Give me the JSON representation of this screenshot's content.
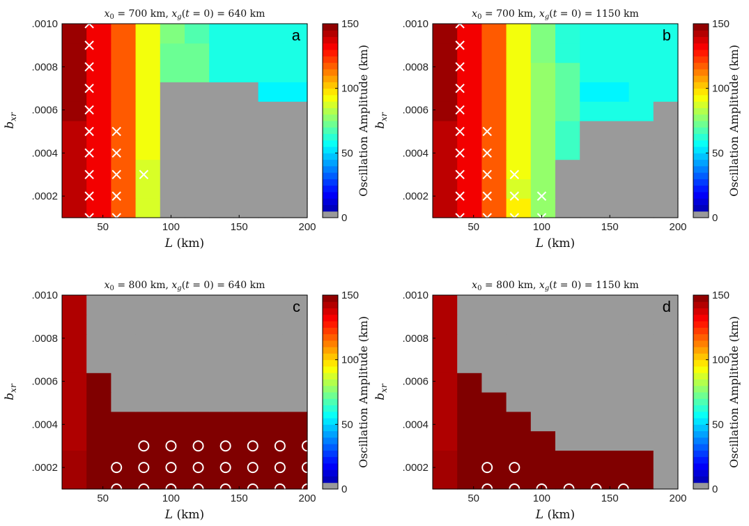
{
  "colorbar": {
    "label": "Oscillation Amplitude (km)",
    "ticks": [
      0,
      50,
      100,
      150
    ],
    "range": [
      0,
      150
    ]
  },
  "marker_legend": {
    "cross": "×",
    "circle": "○"
  },
  "chart_data": [
    {
      "type": "heatmap",
      "panel_label": "a",
      "title": {
        "x0": "700",
        "xg": "640",
        "unit": "km"
      },
      "xlabel": "L",
      "xlabel_unit": "(km)",
      "ylabel_base": "b",
      "ylabel_sub": "xr",
      "x": [
        20,
        40,
        60,
        80,
        100,
        120,
        140,
        160,
        180,
        200
      ],
      "y": [
        0.0001,
        0.0002,
        0.0003,
        0.0004,
        0.0005,
        0.0006,
        0.0007,
        0.0008,
        0.0009,
        0.001
      ],
      "xticks": [
        50,
        100,
        150,
        200
      ],
      "xtick_labels": [
        "50",
        "100",
        "150",
        "200"
      ],
      "yticks": [
        0.0002,
        0.0004,
        0.0006,
        0.0008,
        0.001
      ],
      "ytick_labels": [
        ".0002",
        ".0004",
        ".0006",
        ".0008",
        ".0010"
      ],
      "xlim": [
        20,
        200
      ],
      "ylim": [
        0.0001,
        0.001
      ],
      "values": [
        [
          141,
          133,
          118,
          88,
          null,
          null,
          null,
          null,
          null,
          null
        ],
        [
          141,
          133,
          118,
          88,
          null,
          null,
          null,
          null,
          null,
          null
        ],
        [
          141,
          133,
          118,
          88,
          null,
          null,
          null,
          null,
          null,
          null
        ],
        [
          141,
          133,
          118,
          92,
          null,
          null,
          null,
          null,
          null,
          null
        ],
        [
          141,
          133,
          118,
          92,
          null,
          null,
          null,
          null,
          null,
          null
        ],
        [
          146,
          133,
          118,
          92,
          null,
          null,
          null,
          null,
          null,
          null
        ],
        [
          146,
          133,
          118,
          92,
          null,
          null,
          null,
          null,
          55,
          55
        ],
        [
          146,
          133,
          118,
          92,
          72,
          72,
          60,
          60,
          60,
          60
        ],
        [
          146,
          133,
          118,
          92,
          72,
          72,
          60,
          60,
          60,
          60
        ],
        [
          146,
          133,
          118,
          92,
          75,
          68,
          60,
          60,
          60,
          60
        ]
      ],
      "markers": [
        {
          "x": 40,
          "y": 0.0001,
          "m": "cross"
        },
        {
          "x": 40,
          "y": 0.0002,
          "m": "cross"
        },
        {
          "x": 40,
          "y": 0.0003,
          "m": "cross"
        },
        {
          "x": 40,
          "y": 0.0004,
          "m": "cross"
        },
        {
          "x": 40,
          "y": 0.0005,
          "m": "cross"
        },
        {
          "x": 40,
          "y": 0.0006,
          "m": "cross"
        },
        {
          "x": 40,
          "y": 0.0007,
          "m": "cross"
        },
        {
          "x": 40,
          "y": 0.0008,
          "m": "cross"
        },
        {
          "x": 40,
          "y": 0.0009,
          "m": "cross"
        },
        {
          "x": 40,
          "y": 0.001,
          "m": "cross"
        },
        {
          "x": 60,
          "y": 0.0001,
          "m": "cross"
        },
        {
          "x": 60,
          "y": 0.0002,
          "m": "cross"
        },
        {
          "x": 60,
          "y": 0.0003,
          "m": "cross"
        },
        {
          "x": 60,
          "y": 0.0004,
          "m": "cross"
        },
        {
          "x": 60,
          "y": 0.0005,
          "m": "cross"
        },
        {
          "x": 80,
          "y": 0.0003,
          "m": "cross"
        }
      ]
    },
    {
      "type": "heatmap",
      "panel_label": "b",
      "title": {
        "x0": "700",
        "xg": "1150",
        "unit": "km"
      },
      "xlabel": "L",
      "xlabel_unit": "(km)",
      "ylabel_base": "b",
      "ylabel_sub": "xr",
      "x": [
        20,
        40,
        60,
        80,
        100,
        120,
        140,
        160,
        180,
        200
      ],
      "y": [
        0.0001,
        0.0002,
        0.0003,
        0.0004,
        0.0005,
        0.0006,
        0.0007,
        0.0008,
        0.0009,
        0.001
      ],
      "xticks": [
        50,
        100,
        150,
        200
      ],
      "xtick_labels": [
        "50",
        "100",
        "150",
        "200"
      ],
      "yticks": [
        0.0002,
        0.0004,
        0.0006,
        0.0008,
        0.001
      ],
      "ytick_labels": [
        ".0002",
        ".0004",
        ".0006",
        ".0008",
        ".0010"
      ],
      "xlim": [
        20,
        200
      ],
      "ylim": [
        0.0001,
        0.001
      ],
      "values": [
        [
          141,
          133,
          118,
          96,
          78,
          null,
          null,
          null,
          null,
          null
        ],
        [
          141,
          133,
          118,
          88,
          78,
          null,
          null,
          null,
          null,
          null
        ],
        [
          141,
          133,
          118,
          92,
          78,
          null,
          null,
          null,
          null,
          null
        ],
        [
          141,
          133,
          118,
          92,
          78,
          65,
          null,
          null,
          null,
          null
        ],
        [
          141,
          133,
          118,
          92,
          78,
          65,
          null,
          null,
          null,
          null
        ],
        [
          146,
          133,
          118,
          92,
          78,
          70,
          60,
          60,
          60,
          null
        ],
        [
          146,
          133,
          118,
          92,
          78,
          70,
          55,
          55,
          60,
          60
        ],
        [
          146,
          133,
          118,
          92,
          78,
          70,
          60,
          60,
          60,
          60
        ],
        [
          146,
          133,
          118,
          92,
          75,
          62,
          60,
          60,
          60,
          60
        ],
        [
          146,
          133,
          118,
          92,
          75,
          62,
          60,
          60,
          60,
          60
        ]
      ],
      "markers": [
        {
          "x": 40,
          "y": 0.0001,
          "m": "cross"
        },
        {
          "x": 40,
          "y": 0.0002,
          "m": "cross"
        },
        {
          "x": 40,
          "y": 0.0003,
          "m": "cross"
        },
        {
          "x": 40,
          "y": 0.0004,
          "m": "cross"
        },
        {
          "x": 40,
          "y": 0.0005,
          "m": "cross"
        },
        {
          "x": 40,
          "y": 0.0006,
          "m": "cross"
        },
        {
          "x": 40,
          "y": 0.0007,
          "m": "cross"
        },
        {
          "x": 40,
          "y": 0.0008,
          "m": "cross"
        },
        {
          "x": 40,
          "y": 0.0009,
          "m": "cross"
        },
        {
          "x": 40,
          "y": 0.001,
          "m": "cross"
        },
        {
          "x": 60,
          "y": 0.0001,
          "m": "cross"
        },
        {
          "x": 60,
          "y": 0.0002,
          "m": "cross"
        },
        {
          "x": 60,
          "y": 0.0003,
          "m": "cross"
        },
        {
          "x": 60,
          "y": 0.0004,
          "m": "cross"
        },
        {
          "x": 60,
          "y": 0.0005,
          "m": "cross"
        },
        {
          "x": 80,
          "y": 0.0001,
          "m": "cross"
        },
        {
          "x": 80,
          "y": 0.0002,
          "m": "cross"
        },
        {
          "x": 80,
          "y": 0.0003,
          "m": "cross"
        },
        {
          "x": 100,
          "y": 0.0001,
          "m": "cross"
        },
        {
          "x": 100,
          "y": 0.0002,
          "m": "cross"
        }
      ]
    },
    {
      "type": "heatmap",
      "panel_label": "c",
      "title": {
        "x0": "800",
        "xg": "640",
        "unit": "km"
      },
      "xlabel": "L",
      "xlabel_unit": "(km)",
      "ylabel_base": "b",
      "ylabel_sub": "xr",
      "x": [
        20,
        40,
        60,
        80,
        100,
        120,
        140,
        160,
        180,
        200
      ],
      "y": [
        0.0001,
        0.0002,
        0.0003,
        0.0004,
        0.0005,
        0.0006,
        0.0007,
        0.0008,
        0.0009,
        0.001
      ],
      "xticks": [
        50,
        100,
        150,
        200
      ],
      "xtick_labels": [
        "50",
        "100",
        "150",
        "200"
      ],
      "yticks": [
        0.0002,
        0.0004,
        0.0006,
        0.0008,
        0.001
      ],
      "ytick_labels": [
        ".0002",
        ".0004",
        ".0006",
        ".0008",
        ".0010"
      ],
      "xlim": [
        20,
        200
      ],
      "ylim": [
        0.0001,
        0.001
      ],
      "values": [
        [
          145,
          150,
          150,
          150,
          150,
          150,
          150,
          150,
          150,
          150
        ],
        [
          145,
          150,
          150,
          150,
          150,
          150,
          150,
          150,
          150,
          150
        ],
        [
          143,
          150,
          150,
          150,
          150,
          150,
          150,
          150,
          150,
          150
        ],
        [
          143,
          150,
          150,
          150,
          150,
          150,
          150,
          150,
          150,
          150
        ],
        [
          143,
          150,
          null,
          null,
          null,
          null,
          null,
          null,
          null,
          null
        ],
        [
          143,
          150,
          null,
          null,
          null,
          null,
          null,
          null,
          null,
          null
        ],
        [
          143,
          null,
          null,
          null,
          null,
          null,
          null,
          null,
          null,
          null
        ],
        [
          143,
          null,
          null,
          null,
          null,
          null,
          null,
          null,
          null,
          null
        ],
        [
          143,
          null,
          null,
          null,
          null,
          null,
          null,
          null,
          null,
          null
        ],
        [
          143,
          null,
          null,
          null,
          null,
          null,
          null,
          null,
          null,
          null
        ]
      ],
      "markers": [
        {
          "x": 60,
          "y": 0.0001,
          "m": "circle"
        },
        {
          "x": 80,
          "y": 0.0001,
          "m": "circle"
        },
        {
          "x": 100,
          "y": 0.0001,
          "m": "circle"
        },
        {
          "x": 120,
          "y": 0.0001,
          "m": "circle"
        },
        {
          "x": 140,
          "y": 0.0001,
          "m": "circle"
        },
        {
          "x": 160,
          "y": 0.0001,
          "m": "circle"
        },
        {
          "x": 180,
          "y": 0.0001,
          "m": "circle"
        },
        {
          "x": 200,
          "y": 0.0001,
          "m": "circle"
        },
        {
          "x": 60,
          "y": 0.0002,
          "m": "circle"
        },
        {
          "x": 80,
          "y": 0.0002,
          "m": "circle"
        },
        {
          "x": 100,
          "y": 0.0002,
          "m": "circle"
        },
        {
          "x": 120,
          "y": 0.0002,
          "m": "circle"
        },
        {
          "x": 140,
          "y": 0.0002,
          "m": "circle"
        },
        {
          "x": 160,
          "y": 0.0002,
          "m": "circle"
        },
        {
          "x": 180,
          "y": 0.0002,
          "m": "circle"
        },
        {
          "x": 200,
          "y": 0.0002,
          "m": "circle"
        },
        {
          "x": 80,
          "y": 0.0003,
          "m": "circle"
        },
        {
          "x": 100,
          "y": 0.0003,
          "m": "circle"
        },
        {
          "x": 120,
          "y": 0.0003,
          "m": "circle"
        },
        {
          "x": 140,
          "y": 0.0003,
          "m": "circle"
        },
        {
          "x": 160,
          "y": 0.0003,
          "m": "circle"
        },
        {
          "x": 180,
          "y": 0.0003,
          "m": "circle"
        },
        {
          "x": 200,
          "y": 0.0003,
          "m": "circle"
        }
      ]
    },
    {
      "type": "heatmap",
      "panel_label": "d",
      "title": {
        "x0": "800",
        "xg": "1150",
        "unit": "km"
      },
      "xlabel": "L",
      "xlabel_unit": "(km)",
      "ylabel_base": "b",
      "ylabel_sub": "xr",
      "x": [
        20,
        40,
        60,
        80,
        100,
        120,
        140,
        160,
        180,
        200
      ],
      "y": [
        0.0001,
        0.0002,
        0.0003,
        0.0004,
        0.0005,
        0.0006,
        0.0007,
        0.0008,
        0.0009,
        0.001
      ],
      "xticks": [
        50,
        100,
        150,
        200
      ],
      "xtick_labels": [
        "50",
        "100",
        "150",
        "200"
      ],
      "yticks": [
        0.0002,
        0.0004,
        0.0006,
        0.0008,
        0.001
      ],
      "ytick_labels": [
        ".0002",
        ".0004",
        ".0006",
        ".0008",
        ".0010"
      ],
      "xlim": [
        20,
        200
      ],
      "ylim": [
        0.0001,
        0.001
      ],
      "values": [
        [
          145,
          150,
          150,
          150,
          150,
          150,
          150,
          150,
          150,
          null
        ],
        [
          145,
          150,
          150,
          150,
          150,
          150,
          150,
          150,
          150,
          null
        ],
        [
          143,
          150,
          150,
          150,
          150,
          null,
          null,
          null,
          null,
          null
        ],
        [
          143,
          150,
          150,
          150,
          null,
          null,
          null,
          null,
          null,
          null
        ],
        [
          143,
          150,
          150,
          null,
          null,
          null,
          null,
          null,
          null,
          null
        ],
        [
          143,
          150,
          null,
          null,
          null,
          null,
          null,
          null,
          null,
          null
        ],
        [
          143,
          null,
          null,
          null,
          null,
          null,
          null,
          null,
          null,
          null
        ],
        [
          143,
          null,
          null,
          null,
          null,
          null,
          null,
          null,
          null,
          null
        ],
        [
          143,
          null,
          null,
          null,
          null,
          null,
          null,
          null,
          null,
          null
        ],
        [
          143,
          null,
          null,
          null,
          null,
          null,
          null,
          null,
          null,
          null
        ]
      ],
      "markers": [
        {
          "x": 60,
          "y": 0.0001,
          "m": "circle"
        },
        {
          "x": 80,
          "y": 0.0001,
          "m": "circle"
        },
        {
          "x": 100,
          "y": 0.0001,
          "m": "circle"
        },
        {
          "x": 120,
          "y": 0.0001,
          "m": "circle"
        },
        {
          "x": 140,
          "y": 0.0001,
          "m": "circle"
        },
        {
          "x": 160,
          "y": 0.0001,
          "m": "circle"
        },
        {
          "x": 60,
          "y": 0.0002,
          "m": "circle"
        },
        {
          "x": 80,
          "y": 0.0002,
          "m": "circle"
        }
      ]
    }
  ]
}
